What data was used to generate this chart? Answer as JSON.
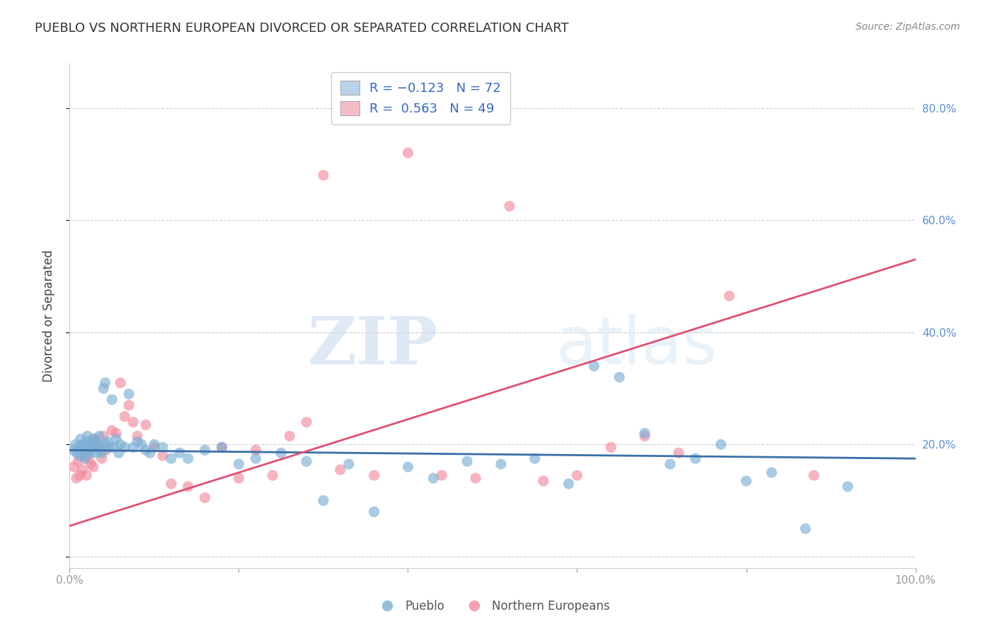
{
  "title": "PUEBLO VS NORTHERN EUROPEAN DIVORCED OR SEPARATED CORRELATION CHART",
  "source": "Source: ZipAtlas.com",
  "ylabel": "Divorced or Separated",
  "watermark_zip": "ZIP",
  "watermark_atlas": "atlas",
  "xlim": [
    0.0,
    1.0
  ],
  "ylim": [
    -0.02,
    0.88
  ],
  "xticks": [
    0.0,
    0.2,
    0.4,
    0.6,
    0.8,
    1.0
  ],
  "xticklabels": [
    "0.0%",
    "",
    "",
    "",
    "",
    "100.0%"
  ],
  "yticks_right": [
    0.0,
    0.2,
    0.4,
    0.6,
    0.8
  ],
  "yticklabels_right": [
    "",
    "20.0%",
    "40.0%",
    "60.0%",
    "80.0%"
  ],
  "pueblo_color": "#7bafd4",
  "northern_color": "#f28b9e",
  "pueblo_line_color": "#3a6fa8",
  "northern_line_color": "#e05070",
  "legend_pueblo_color": "#b8d3ea",
  "legend_northern_color": "#f4bec8",
  "pueblo_intercept": 0.19,
  "pueblo_slope": -0.015,
  "northern_intercept": 0.055,
  "northern_slope": 0.475,
  "pueblo_x": [
    0.005,
    0.007,
    0.008,
    0.01,
    0.012,
    0.013,
    0.015,
    0.016,
    0.017,
    0.018,
    0.02,
    0.021,
    0.022,
    0.023,
    0.024,
    0.025,
    0.027,
    0.028,
    0.03,
    0.031,
    0.033,
    0.034,
    0.035,
    0.036,
    0.038,
    0.04,
    0.042,
    0.043,
    0.045,
    0.047,
    0.05,
    0.052,
    0.055,
    0.058,
    0.06,
    0.065,
    0.07,
    0.075,
    0.08,
    0.085,
    0.09,
    0.095,
    0.1,
    0.11,
    0.12,
    0.13,
    0.14,
    0.16,
    0.18,
    0.2,
    0.22,
    0.25,
    0.28,
    0.3,
    0.33,
    0.36,
    0.4,
    0.43,
    0.47,
    0.51,
    0.55,
    0.59,
    0.62,
    0.65,
    0.68,
    0.71,
    0.74,
    0.77,
    0.8,
    0.83,
    0.87,
    0.92
  ],
  "pueblo_y": [
    0.19,
    0.2,
    0.185,
    0.195,
    0.18,
    0.21,
    0.2,
    0.195,
    0.185,
    0.175,
    0.205,
    0.215,
    0.19,
    0.2,
    0.185,
    0.195,
    0.2,
    0.21,
    0.205,
    0.185,
    0.2,
    0.195,
    0.215,
    0.19,
    0.185,
    0.3,
    0.31,
    0.2,
    0.205,
    0.195,
    0.28,
    0.195,
    0.21,
    0.185,
    0.2,
    0.195,
    0.29,
    0.195,
    0.205,
    0.2,
    0.19,
    0.185,
    0.2,
    0.195,
    0.175,
    0.185,
    0.175,
    0.19,
    0.195,
    0.165,
    0.175,
    0.185,
    0.17,
    0.1,
    0.165,
    0.08,
    0.16,
    0.14,
    0.17,
    0.165,
    0.175,
    0.13,
    0.34,
    0.32,
    0.22,
    0.165,
    0.175,
    0.2,
    0.135,
    0.15,
    0.05,
    0.125
  ],
  "northern_x": [
    0.005,
    0.008,
    0.01,
    0.012,
    0.015,
    0.018,
    0.02,
    0.022,
    0.025,
    0.028,
    0.03,
    0.033,
    0.035,
    0.038,
    0.04,
    0.043,
    0.05,
    0.055,
    0.06,
    0.065,
    0.07,
    0.075,
    0.08,
    0.09,
    0.1,
    0.11,
    0.12,
    0.14,
    0.16,
    0.18,
    0.2,
    0.22,
    0.24,
    0.26,
    0.28,
    0.3,
    0.32,
    0.36,
    0.4,
    0.44,
    0.48,
    0.52,
    0.56,
    0.6,
    0.64,
    0.68,
    0.72,
    0.78,
    0.88
  ],
  "northern_y": [
    0.16,
    0.14,
    0.17,
    0.145,
    0.155,
    0.18,
    0.145,
    0.175,
    0.165,
    0.16,
    0.21,
    0.2,
    0.195,
    0.175,
    0.215,
    0.19,
    0.225,
    0.22,
    0.31,
    0.25,
    0.27,
    0.24,
    0.215,
    0.235,
    0.195,
    0.18,
    0.13,
    0.125,
    0.105,
    0.195,
    0.14,
    0.19,
    0.145,
    0.215,
    0.24,
    0.68,
    0.155,
    0.145,
    0.72,
    0.145,
    0.14,
    0.625,
    0.135,
    0.145,
    0.195,
    0.215,
    0.185,
    0.465,
    0.145
  ],
  "background_color": "#ffffff",
  "grid_color": "#cccccc",
  "title_color": "#333333",
  "right_axis_color": "#5b8dd9",
  "legend_text_color": "#3366cc"
}
